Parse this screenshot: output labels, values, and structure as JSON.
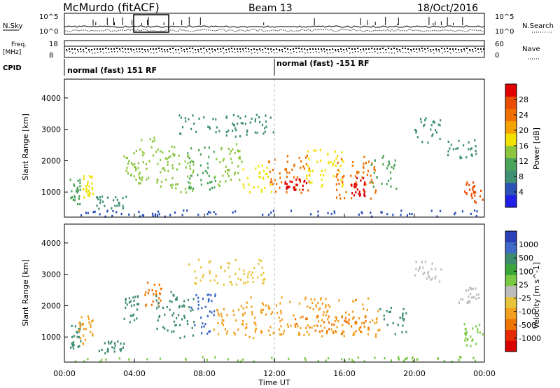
{
  "header": {
    "station": "McMurdo (fitACF)",
    "beam": "Beam 13",
    "date": "18/Oct/2016"
  },
  "top_panels": {
    "nsky_label": "N.Sky",
    "nsky_ticks": [
      "10^5",
      "10^0"
    ],
    "nsearch_label": "N.Search",
    "nsearch_ticks": [
      "10^5",
      "10^0"
    ],
    "freq_label": "Freq.",
    "freq_unit": "[MHz]",
    "freq_ticks": [
      "18",
      "8"
    ],
    "nave_label": "Nave",
    "nave_ticks": [
      "60",
      "0"
    ],
    "cpid_label": "CPID",
    "cpid_segments": [
      "normal (fast) 151 RF",
      "normal (fast) -151 RF"
    ]
  },
  "colors": {
    "power": [
      "#1f1fe6",
      "#2a52b8",
      "#3f8f73",
      "#4aa35a",
      "#8cc63f",
      "#f2e000",
      "#f4a300",
      "#f07000",
      "#ea4c00",
      "#e00000"
    ],
    "velocity": [
      "#2b3fb8",
      "#3f6ac8",
      "#3d8c6e",
      "#3aa63a",
      "#7ac943",
      "#bdbdbd",
      "#e8c43a",
      "#f2a020",
      "#f07400",
      "#e62a00",
      "#d80000"
    ]
  },
  "chart_data": [
    {
      "type": "heatmap",
      "ylabel": "Slant Range [km]",
      "xlabel": "Time UT",
      "x_ticks": [
        "00:00",
        "04:00",
        "08:00",
        "12:00",
        "16:00",
        "20:00",
        "00:00"
      ],
      "y_ticks": [
        "1000",
        "2000",
        "3000",
        "4000"
      ],
      "ylim": [
        200,
        4600
      ],
      "xlim_hours": [
        0,
        24
      ],
      "colorbar_label": "Power [dB]",
      "colorbar_ticks": [
        "4",
        "8",
        "12",
        "16",
        "20",
        "24",
        "28"
      ],
      "colorbar_range": [
        0,
        30
      ],
      "regions": [
        {
          "t": [
            0.3,
            0.9
          ],
          "r": [
            600,
            1500
          ],
          "v": 10
        },
        {
          "t": [
            1.0,
            1.6
          ],
          "r": [
            800,
            1600
          ],
          "v": 15
        },
        {
          "t": [
            1.8,
            3.5
          ],
          "r": [
            500,
            900
          ],
          "v": 8
        },
        {
          "t": [
            3.3,
            4.3
          ],
          "r": [
            1400,
            2400
          ],
          "v": 14
        },
        {
          "t": [
            4.2,
            5.3
          ],
          "r": [
            1300,
            2800
          ],
          "v": 12
        },
        {
          "t": [
            5.0,
            6.3
          ],
          "r": [
            1100,
            2500
          ],
          "v": 14
        },
        {
          "t": [
            6.1,
            7.4
          ],
          "r": [
            1000,
            2300
          ],
          "v": 14
        },
        {
          "t": [
            7.0,
            8.6
          ],
          "r": [
            1100,
            2500
          ],
          "v": 11
        },
        {
          "t": [
            8.5,
            10.2
          ],
          "r": [
            1200,
            2600
          ],
          "v": 14
        },
        {
          "t": [
            10.0,
            11.8
          ],
          "r": [
            1000,
            1900
          ],
          "v": 17
        },
        {
          "t": [
            11.6,
            14.0
          ],
          "r": [
            1000,
            2200
          ],
          "v": 22
        },
        {
          "t": [
            12.5,
            13.8
          ],
          "r": [
            1100,
            1500
          ],
          "v": 27
        },
        {
          "t": [
            13.8,
            16.0
          ],
          "r": [
            1200,
            2400
          ],
          "v": 17
        },
        {
          "t": [
            15.5,
            17.8
          ],
          "r": [
            800,
            2200
          ],
          "v": 22
        },
        {
          "t": [
            16.3,
            17.2
          ],
          "r": [
            900,
            1500
          ],
          "v": 27
        },
        {
          "t": [
            17.5,
            19.0
          ],
          "r": [
            1100,
            2200
          ],
          "v": 10
        },
        {
          "t": [
            20.0,
            21.5
          ],
          "r": [
            2600,
            3400
          ],
          "v": 6
        },
        {
          "t": [
            21.8,
            23.5
          ],
          "r": [
            2100,
            2700
          ],
          "v": 7
        },
        {
          "t": [
            22.8,
            24.0
          ],
          "r": [
            700,
            1400
          ],
          "v": 25
        },
        {
          "t": [
            6.5,
            12.0
          ],
          "r": [
            2800,
            3500
          ],
          "v": 6
        },
        {
          "t": [
            0.5,
            24.0
          ],
          "r": [
            250,
            450
          ],
          "v": 4
        }
      ]
    },
    {
      "type": "heatmap",
      "ylabel": "Slant Range [km]",
      "xlabel": "Time UT",
      "x_ticks": [
        "00:00",
        "04:00",
        "08:00",
        "12:00",
        "16:00",
        "20:00",
        "00:00"
      ],
      "y_ticks": [
        "1000",
        "2000",
        "3000",
        "4000"
      ],
      "ylim": [
        200,
        4600
      ],
      "xlim_hours": [
        0,
        24
      ],
      "colorbar_label": "Velocity [m s^-1]",
      "colorbar_ticks": [
        "1000",
        "500",
        "100",
        "25",
        "-25",
        "-100",
        "-500",
        "-1000"
      ],
      "regions": [
        {
          "t": [
            0.3,
            0.9
          ],
          "r": [
            600,
            1500
          ],
          "v": 300
        },
        {
          "t": [
            0.8,
            1.6
          ],
          "r": [
            800,
            1700
          ],
          "v": -150
        },
        {
          "t": [
            1.8,
            3.5
          ],
          "r": [
            500,
            900
          ],
          "v": 300
        },
        {
          "t": [
            3.3,
            4.3
          ],
          "r": [
            1400,
            2400
          ],
          "v": 300
        },
        {
          "t": [
            4.5,
            5.5
          ],
          "r": [
            2000,
            2800
          ],
          "v": -300
        },
        {
          "t": [
            5.2,
            6.4
          ],
          "r": [
            1100,
            2500
          ],
          "v": 300
        },
        {
          "t": [
            6.2,
            7.5
          ],
          "r": [
            1000,
            2300
          ],
          "v": 300
        },
        {
          "t": [
            7.2,
            8.6
          ],
          "r": [
            1100,
            2500
          ],
          "v": 400
        },
        {
          "t": [
            8.5,
            10.0
          ],
          "r": [
            1100,
            2000
          ],
          "v": -150
        },
        {
          "t": [
            10.0,
            18.0
          ],
          "r": [
            1000,
            2300
          ],
          "v": -200
        },
        {
          "t": [
            13.0,
            17.5
          ],
          "r": [
            1100,
            1700
          ],
          "v": -350
        },
        {
          "t": [
            18.0,
            19.5
          ],
          "r": [
            1100,
            2000
          ],
          "v": 300
        },
        {
          "t": [
            20.0,
            21.5
          ],
          "r": [
            2800,
            3500
          ],
          "v": 0
        },
        {
          "t": [
            22.5,
            24.0
          ],
          "r": [
            2100,
            2600
          ],
          "v": 0
        },
        {
          "t": [
            22.8,
            24.0
          ],
          "r": [
            700,
            1500
          ],
          "v": 100
        },
        {
          "t": [
            0.0,
            24.0
          ],
          "r": [
            250,
            400
          ],
          "v": 60
        },
        {
          "t": [
            7.0,
            11.5
          ],
          "r": [
            2700,
            3500
          ],
          "v": -60
        }
      ]
    }
  ]
}
